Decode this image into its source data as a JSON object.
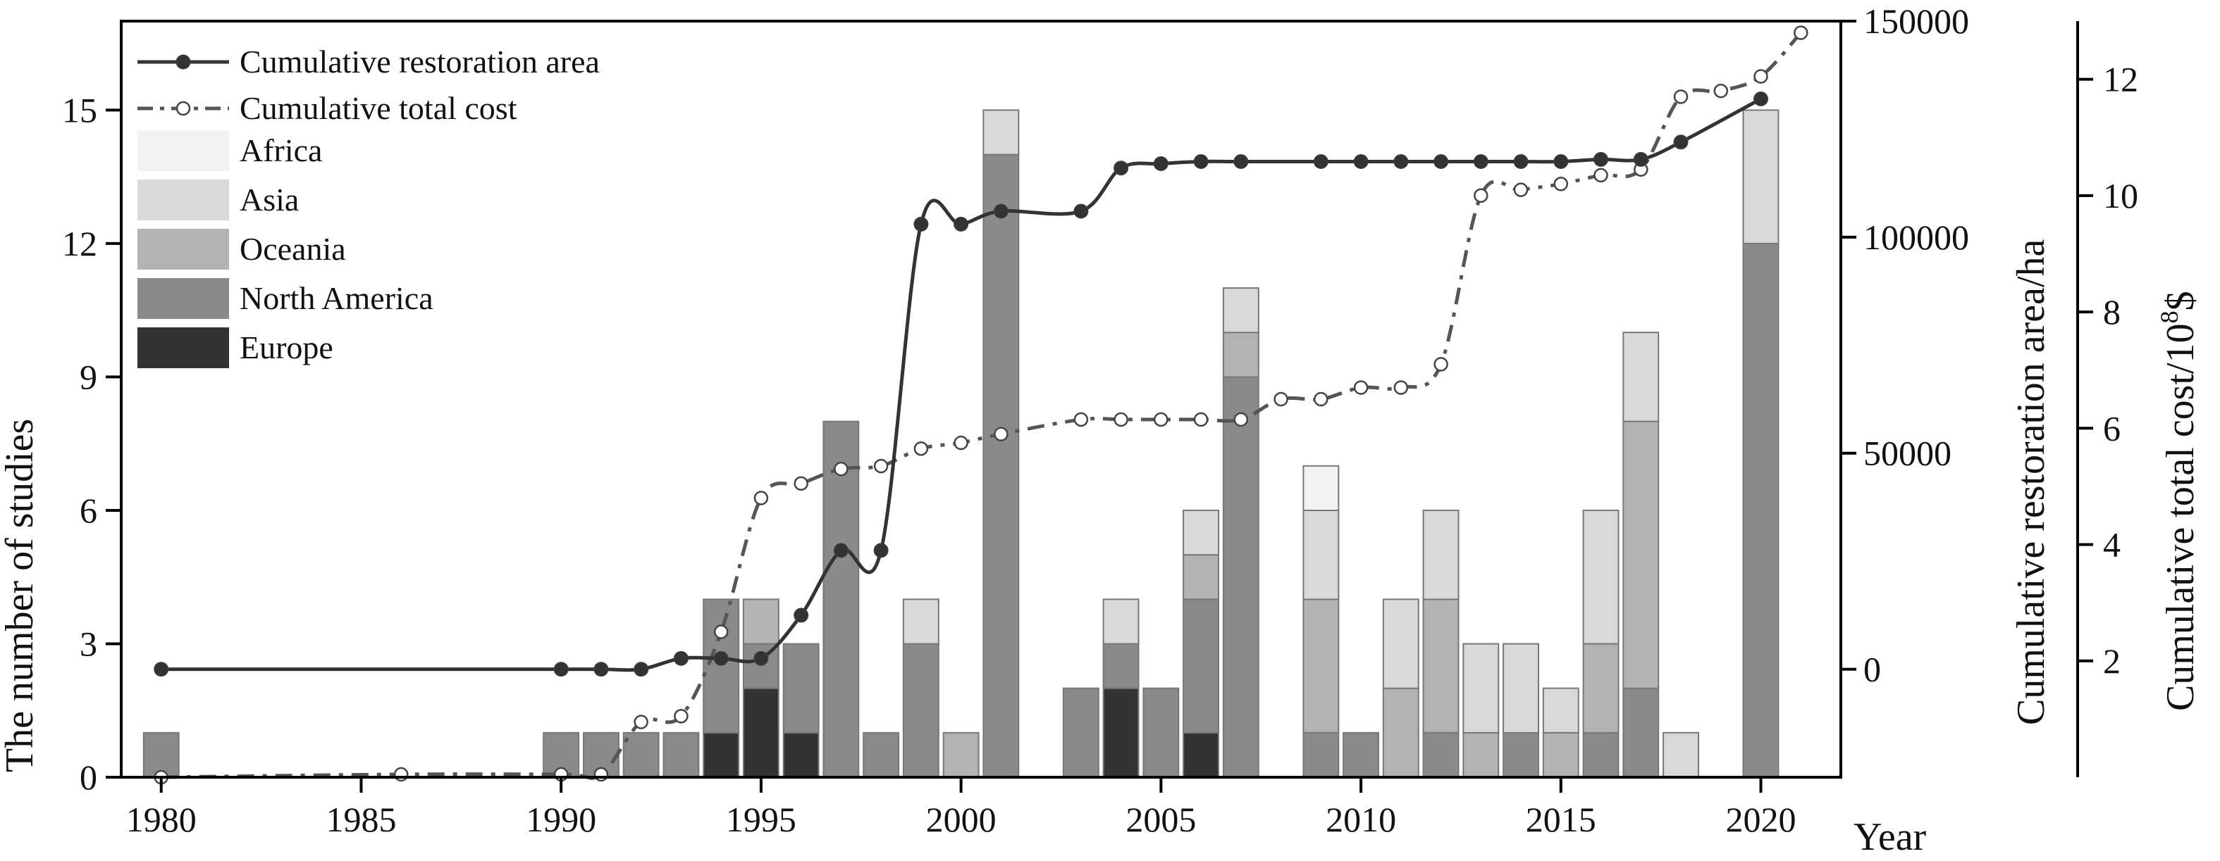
{
  "chart_data": {
    "type": "bar",
    "x_title": "Year",
    "y_title_left": "The number of studies",
    "y_title_right1": "Cumulative restoration area/ha",
    "y_title_right2": "Cumulative total cost/10",
    "y_title_right2_sup": "8",
    "y_title_right2_unit": "$",
    "x_ticks": [
      "1980",
      "1985",
      "1990",
      "1995",
      "2000",
      "2005",
      "2010",
      "2015",
      "2020"
    ],
    "x_range": [
      1979,
      2022
    ],
    "y_left_range": [
      0,
      17
    ],
    "y_left_ticks": [
      "0",
      "3",
      "6",
      "9",
      "12",
      "15"
    ],
    "y_right1_range": [
      -25000,
      150000
    ],
    "y_right1_ticks": [
      "0",
      "50000",
      "100000",
      "150000"
    ],
    "y_right2_range": [
      0,
      13
    ],
    "y_right2_ticks": [
      "2",
      "4",
      "6",
      "8",
      "10",
      "12"
    ],
    "legend_lines": [
      {
        "label": "Cumulative restoration area",
        "style": "solid",
        "marker": "filled"
      },
      {
        "label": "Cumulative total cost",
        "style": "dashdot",
        "marker": "open"
      }
    ],
    "regions": [
      {
        "name": "Africa",
        "color": "#f2f2f2"
      },
      {
        "name": "Asia",
        "color": "#d9d9d9"
      },
      {
        "name": "Oceania",
        "color": "#b3b3b3"
      },
      {
        "name": "North America",
        "color": "#8a8a8a"
      },
      {
        "name": "Europe",
        "color": "#333333"
      }
    ],
    "bars": [
      {
        "year": 1980,
        "Europe": 0,
        "North America": 1,
        "Oceania": 0,
        "Asia": 0,
        "Africa": 0
      },
      {
        "year": 1990,
        "Europe": 0,
        "North America": 1,
        "Oceania": 0,
        "Asia": 0,
        "Africa": 0
      },
      {
        "year": 1991,
        "Europe": 0,
        "North America": 1,
        "Oceania": 0,
        "Asia": 0,
        "Africa": 0
      },
      {
        "year": 1992,
        "Europe": 0,
        "North America": 1,
        "Oceania": 0,
        "Asia": 0,
        "Africa": 0
      },
      {
        "year": 1993,
        "Europe": 0,
        "North America": 1,
        "Oceania": 0,
        "Asia": 0,
        "Africa": 0
      },
      {
        "year": 1994,
        "Europe": 1,
        "North America": 3,
        "Oceania": 0,
        "Asia": 0,
        "Africa": 0
      },
      {
        "year": 1995,
        "Europe": 2,
        "North America": 1,
        "Oceania": 1,
        "Asia": 0,
        "Africa": 0
      },
      {
        "year": 1996,
        "Europe": 1,
        "North America": 2,
        "Oceania": 0,
        "Asia": 0,
        "Africa": 0
      },
      {
        "year": 1997,
        "Europe": 0,
        "North America": 8,
        "Oceania": 0,
        "Asia": 0,
        "Africa": 0
      },
      {
        "year": 1998,
        "Europe": 0,
        "North America": 1,
        "Oceania": 0,
        "Asia": 0,
        "Africa": 0
      },
      {
        "year": 1999,
        "Europe": 0,
        "North America": 3,
        "Oceania": 0,
        "Asia": 1,
        "Africa": 0
      },
      {
        "year": 2000,
        "Europe": 0,
        "North America": 0,
        "Oceania": 1,
        "Asia": 0,
        "Africa": 0
      },
      {
        "year": 2001,
        "Europe": 0,
        "North America": 14,
        "Oceania": 0,
        "Asia": 1,
        "Africa": 0
      },
      {
        "year": 2003,
        "Europe": 0,
        "North America": 2,
        "Oceania": 0,
        "Asia": 0,
        "Africa": 0
      },
      {
        "year": 2004,
        "Europe": 2,
        "North America": 1,
        "Oceania": 0,
        "Asia": 1,
        "Africa": 0
      },
      {
        "year": 2005,
        "Europe": 0,
        "North America": 2,
        "Oceania": 0,
        "Asia": 0,
        "Africa": 0
      },
      {
        "year": 2006,
        "Europe": 1,
        "North America": 3,
        "Oceania": 1,
        "Asia": 1,
        "Africa": 0
      },
      {
        "year": 2007,
        "Europe": 0,
        "North America": 9,
        "Oceania": 1,
        "Asia": 1,
        "Africa": 0
      },
      {
        "year": 2009,
        "Europe": 0,
        "North America": 1,
        "Oceania": 3,
        "Asia": 2,
        "Africa": 1
      },
      {
        "year": 2010,
        "Europe": 0,
        "North America": 1,
        "Oceania": 0,
        "Asia": 0,
        "Africa": 0
      },
      {
        "year": 2011,
        "Europe": 0,
        "North America": 0,
        "Oceania": 2,
        "Asia": 2,
        "Africa": 0
      },
      {
        "year": 2012,
        "Europe": 0,
        "North America": 1,
        "Oceania": 3,
        "Asia": 2,
        "Africa": 0
      },
      {
        "year": 2013,
        "Europe": 0,
        "North America": 0,
        "Oceania": 1,
        "Asia": 2,
        "Africa": 0
      },
      {
        "year": 2014,
        "Europe": 0,
        "North America": 1,
        "Oceania": 0,
        "Asia": 2,
        "Africa": 0
      },
      {
        "year": 2015,
        "Europe": 0,
        "North America": 0,
        "Oceania": 1,
        "Asia": 1,
        "Africa": 0
      },
      {
        "year": 2016,
        "Europe": 0,
        "North America": 1,
        "Oceania": 2,
        "Asia": 3,
        "Africa": 0
      },
      {
        "year": 2017,
        "Europe": 0,
        "North America": 2,
        "Oceania": 6,
        "Asia": 2,
        "Africa": 0
      },
      {
        "year": 2018,
        "Europe": 0,
        "North America": 0,
        "Oceania": 0,
        "Asia": 1,
        "Africa": 0
      },
      {
        "year": 2020,
        "Europe": 0,
        "North America": 12,
        "Oceania": 0,
        "Asia": 3,
        "Africa": 0
      }
    ],
    "series": [
      {
        "name": "Cumulative restoration area",
        "axis": "right1",
        "points": [
          [
            1980,
            0
          ],
          [
            1990,
            0
          ],
          [
            1991,
            0
          ],
          [
            1992,
            0
          ],
          [
            1993,
            2500
          ],
          [
            1994,
            2500
          ],
          [
            1995,
            2500
          ],
          [
            1996,
            12500
          ],
          [
            1997,
            27500
          ],
          [
            1998,
            27500
          ],
          [
            1999,
            103000
          ],
          [
            2000,
            103000
          ],
          [
            2001,
            106000
          ],
          [
            2003,
            106000
          ],
          [
            2004,
            116000
          ],
          [
            2005,
            117000
          ],
          [
            2006,
            117500
          ],
          [
            2007,
            117500
          ],
          [
            2009,
            117500
          ],
          [
            2010,
            117500
          ],
          [
            2011,
            117500
          ],
          [
            2012,
            117500
          ],
          [
            2013,
            117500
          ],
          [
            2014,
            117500
          ],
          [
            2015,
            117500
          ],
          [
            2016,
            118000
          ],
          [
            2017,
            118000
          ],
          [
            2018,
            122000
          ],
          [
            2020,
            132000
          ]
        ]
      },
      {
        "name": "Cumulative total cost",
        "axis": "right2",
        "points": [
          [
            1980,
            0
          ],
          [
            1986,
            0.05
          ],
          [
            1990,
            0.05
          ],
          [
            1991,
            0.05
          ],
          [
            1992,
            0.95
          ],
          [
            1993,
            1.05
          ],
          [
            1994,
            2.5
          ],
          [
            1995,
            4.8
          ],
          [
            1996,
            5.05
          ],
          [
            1997,
            5.3
          ],
          [
            1998,
            5.35
          ],
          [
            1999,
            5.65
          ],
          [
            2000,
            5.75
          ],
          [
            2001,
            5.9
          ],
          [
            2003,
            6.15
          ],
          [
            2004,
            6.15
          ],
          [
            2005,
            6.15
          ],
          [
            2006,
            6.15
          ],
          [
            2007,
            6.15
          ],
          [
            2008,
            6.5
          ],
          [
            2009,
            6.5
          ],
          [
            2010,
            6.7
          ],
          [
            2011,
            6.7
          ],
          [
            2012,
            7.1
          ],
          [
            2013,
            10.0
          ],
          [
            2014,
            10.1
          ],
          [
            2015,
            10.2
          ],
          [
            2016,
            10.35
          ],
          [
            2017,
            10.45
          ],
          [
            2018,
            11.7
          ],
          [
            2019,
            11.8
          ],
          [
            2020,
            12.05
          ],
          [
            2021,
            12.8
          ]
        ]
      }
    ]
  }
}
